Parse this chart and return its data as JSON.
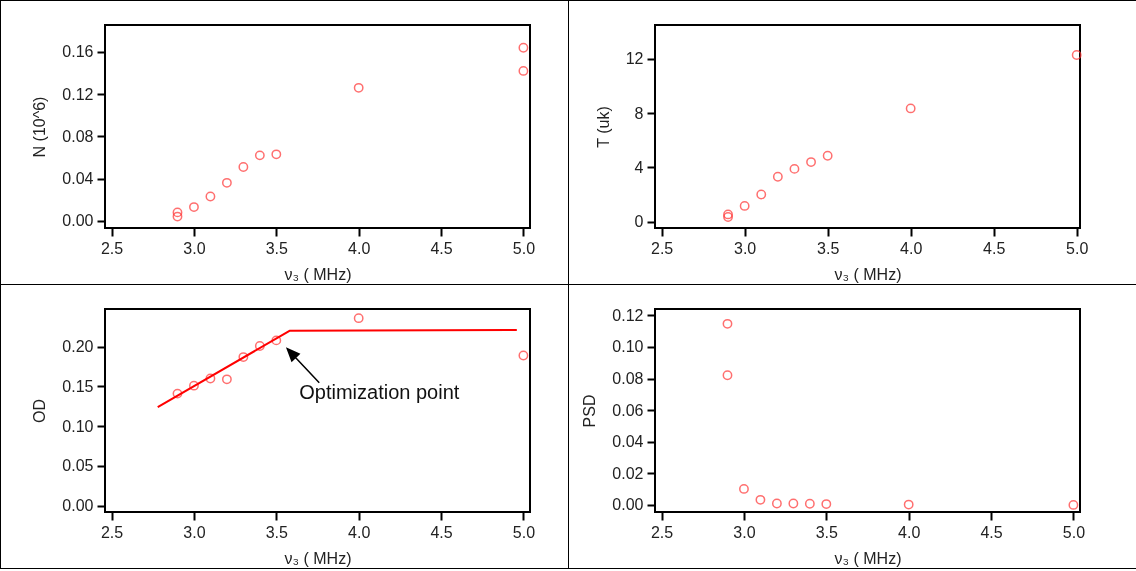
{
  "chart_data": [
    {
      "type": "scatter",
      "xlabel": "ν₃ ( MHz)",
      "ylabel": "N (10^6)",
      "xlim": [
        2.46,
        5.04
      ],
      "ylim": [
        -0.0068,
        0.1855
      ],
      "xticks": [
        2.5,
        {
          "value": 3,
          "label": "3.0"
        },
        3.5,
        {
          "value": 4,
          "label": "4.0"
        },
        4.5,
        {
          "value": 5,
          "label": "5.0"
        }
      ],
      "yticks": [
        {
          "value": 0,
          "label": "0.00"
        },
        0.04,
        0.08,
        0.12,
        0.16
      ],
      "grid": false,
      "marker": "circle",
      "series": [
        {
          "color": "#ff3333",
          "x": [
            2.9,
            2.9,
            3.0,
            3.1,
            3.2,
            3.3,
            3.4,
            3.5,
            4.0,
            5.0,
            5.0
          ],
          "values": [
            0.008,
            0.004,
            0.013,
            0.023,
            0.036,
            0.051,
            0.062,
            0.063,
            0.126,
            0.164,
            0.142
          ]
        }
      ]
    },
    {
      "type": "scatter",
      "xlabel": "ν₃ ( MHz)",
      "ylabel": "T (uk)",
      "xlim": [
        2.46,
        5.02
      ],
      "ylim": [
        -0.47,
        14.5
      ],
      "xticks": [
        2.5,
        {
          "value": 3,
          "label": "3.0"
        },
        3.5,
        {
          "value": 4,
          "label": "4.0"
        },
        4.5,
        {
          "value": 5,
          "label": "5.0"
        }
      ],
      "yticks": [
        0,
        4,
        8,
        12
      ],
      "grid": false,
      "marker": "circle",
      "series": [
        {
          "color": "#ff3333",
          "x": [
            2.9,
            2.9,
            3.0,
            3.1,
            3.2,
            3.3,
            3.4,
            3.5,
            4.0,
            5.0
          ],
          "values": [
            0.53,
            0.34,
            1.16,
            2.0,
            3.31,
            3.89,
            4.39,
            4.86,
            8.35,
            12.29
          ]
        }
      ]
    },
    {
      "type": "scatter",
      "xlabel": "ν₃ ( MHz)",
      "ylabel": "OD",
      "xlim": [
        2.46,
        5.04
      ],
      "ylim": [
        -0.008,
        0.2475
      ],
      "xticks": [
        2.5,
        {
          "value": 3,
          "label": "3.0"
        },
        3.5,
        {
          "value": 4,
          "label": "4.0"
        },
        4.5,
        {
          "value": 5,
          "label": "5.0"
        }
      ],
      "yticks": [
        {
          "value": 0,
          "label": "0.00"
        },
        0.05,
        {
          "value": 0.1,
          "label": "0.10"
        },
        0.15,
        {
          "value": 0.2,
          "label": "0.20"
        }
      ],
      "grid": false,
      "series": [
        {
          "color": "#ff3333",
          "marker": "circle",
          "x": [
            2.9,
            3.0,
            3.1,
            3.2,
            3.3,
            3.4,
            3.5,
            4.0,
            5.0
          ],
          "values": [
            0.141,
            0.151,
            0.16,
            0.159,
            0.187,
            0.201,
            0.208,
            0.236,
            0.189
          ]
        },
        {
          "type": "line",
          "color": "#ff0000",
          "x": [
            2.78,
            3.58,
            4.96
          ],
          "values": [
            0.124,
            0.22,
            0.221
          ]
        }
      ],
      "annotations": [
        {
          "text": "Optimization point",
          "x": 3.53,
          "y": 0.205
        }
      ]
    },
    {
      "type": "scatter",
      "xlabel": "ν₃ ( MHz)",
      "ylabel": "PSD",
      "xlim": [
        2.46,
        5.04
      ],
      "ylim": [
        -0.0045,
        0.124
      ],
      "xticks": [
        2.5,
        {
          "value": 3,
          "label": "3.0"
        },
        3.5,
        {
          "value": 4,
          "label": "4.0"
        },
        4.5,
        {
          "value": 5,
          "label": "5.0"
        }
      ],
      "yticks": [
        {
          "value": 0,
          "label": "0.00"
        },
        0.02,
        0.04,
        0.06,
        0.08,
        {
          "value": 0.1,
          "label": "0.10"
        },
        0.12
      ],
      "grid": false,
      "marker": "circle",
      "series": [
        {
          "color": "#ff3333",
          "x": [
            2.9,
            2.9,
            3.0,
            3.1,
            3.2,
            3.3,
            3.4,
            3.5,
            4.0,
            5.0
          ],
          "values": [
            0.1146,
            0.0821,
            0.0101,
            0.0032,
            0.0009,
            0.0009,
            0.0007,
            0.0005,
            0.0002,
            0.0
          ]
        }
      ]
    }
  ]
}
